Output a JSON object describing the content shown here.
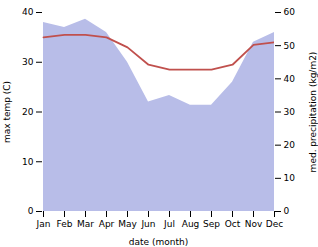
{
  "chart_data": {
    "type": "line",
    "categories": [
      "Jan",
      "Feb",
      "Mar",
      "Apr",
      "May",
      "Jun",
      "Jul",
      "Aug",
      "Sep",
      "Oct",
      "Nov",
      "Dec"
    ],
    "series": [
      {
        "type": "area",
        "axis": "y2",
        "color": "#b8bde8",
        "values": [
          57.0,
          55.5,
          58.0,
          54.0,
          45.0,
          33.0,
          35.0,
          32.0,
          32.0,
          39.0,
          51.0,
          54.0
        ]
      },
      {
        "type": "line",
        "color": "#c0504d",
        "values": [
          35.0,
          35.5,
          35.5,
          35.0,
          33.0,
          29.5,
          28.5,
          28.5,
          28.5,
          29.5,
          33.5,
          34.0
        ]
      }
    ],
    "xlabel": "date (month)",
    "ylabel": "max temp (C)",
    "y2label": "med. precipitation (kg/m2)",
    "ylim": [
      0,
      40
    ],
    "yticks": [
      0,
      10,
      20,
      30,
      40
    ],
    "y2lim": [
      0,
      60
    ],
    "y2ticks": [
      0,
      10,
      20,
      30,
      40,
      50,
      60
    ],
    "grid": false
  }
}
